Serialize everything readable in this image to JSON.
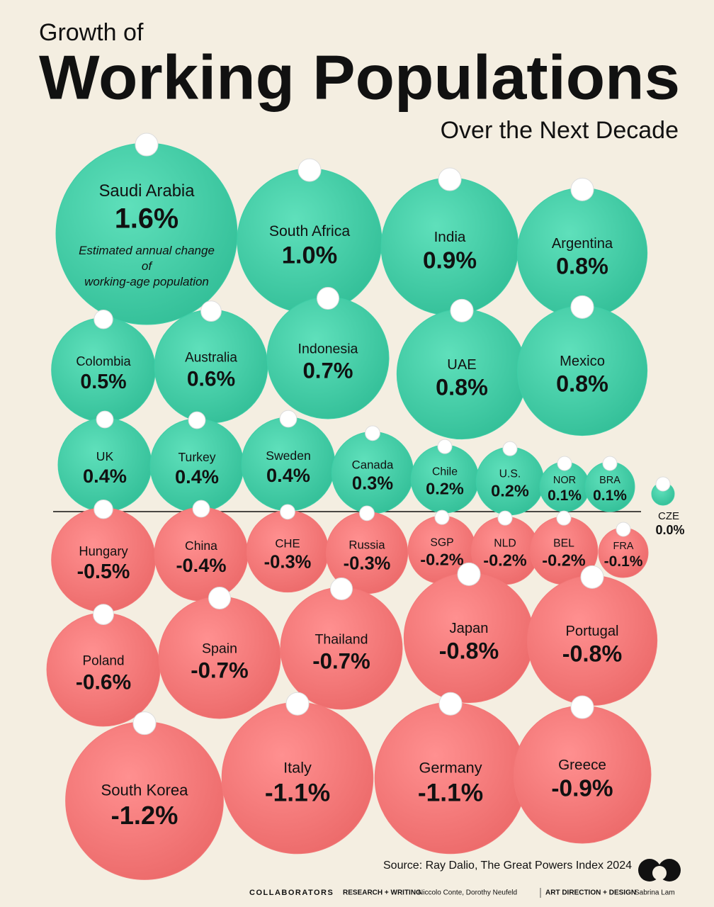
{
  "chart_data": {
    "type": "bubble",
    "title": "Working Populations",
    "pretitle": "Growth of",
    "subtitle": "Over the Next Decade",
    "annotation": "Estimated annual change of working-age population",
    "source": "Source: Ray Dalio, The Great Powers Index 2024",
    "credits": {
      "label": "COLLABORATORS",
      "research_label": "RESEARCH + WRITING",
      "research": "Niccolo Conte, Dorothy Neufeld",
      "design_label": "ART DIRECTION + DESIGN",
      "design": "Sabrina Lam"
    },
    "positive_color": "#3fcea7",
    "negative_color": "#f27878",
    "categories": [
      "Saudi Arabia",
      "South Africa",
      "India",
      "Argentina",
      "Colombia",
      "Australia",
      "Indonesia",
      "UAE",
      "Mexico",
      "UK",
      "Turkey",
      "Sweden",
      "Canada",
      "Chile",
      "U.S.",
      "NOR",
      "BRA",
      "CZE",
      "Hungary",
      "China",
      "CHE",
      "Russia",
      "SGP",
      "NLD",
      "BEL",
      "FRA",
      "Poland",
      "Spain",
      "Thailand",
      "Japan",
      "Portugal",
      "South Korea",
      "Italy",
      "Germany",
      "Greece"
    ],
    "values": [
      1.6,
      1.0,
      0.9,
      0.8,
      0.5,
      0.6,
      0.7,
      0.8,
      0.8,
      0.4,
      0.4,
      0.4,
      0.3,
      0.2,
      0.2,
      0.1,
      0.1,
      0.0,
      -0.5,
      -0.4,
      -0.3,
      -0.3,
      -0.2,
      -0.2,
      -0.2,
      -0.1,
      -0.6,
      -0.7,
      -0.7,
      -0.8,
      -0.8,
      -1.2,
      -1.1,
      -1.1,
      -0.9
    ],
    "value_labels": [
      "1.6%",
      "1.0%",
      "0.9%",
      "0.8%",
      "0.5%",
      "0.6%",
      "0.7%",
      "0.8%",
      "0.8%",
      "0.4%",
      "0.4%",
      "0.4%",
      "0.3%",
      "0.2%",
      "0.2%",
      "0.1%",
      "0.1%",
      "0.0%",
      "-0.5%",
      "-0.4%",
      "-0.3%",
      "-0.3%",
      "-0.2%",
      "-0.2%",
      "-0.2%",
      "-0.1%",
      "-0.6%",
      "-0.7%",
      "-0.7%",
      "-0.8%",
      "-0.8%",
      "-1.2%",
      "-1.1%",
      "-1.1%",
      "-0.9%"
    ]
  }
}
